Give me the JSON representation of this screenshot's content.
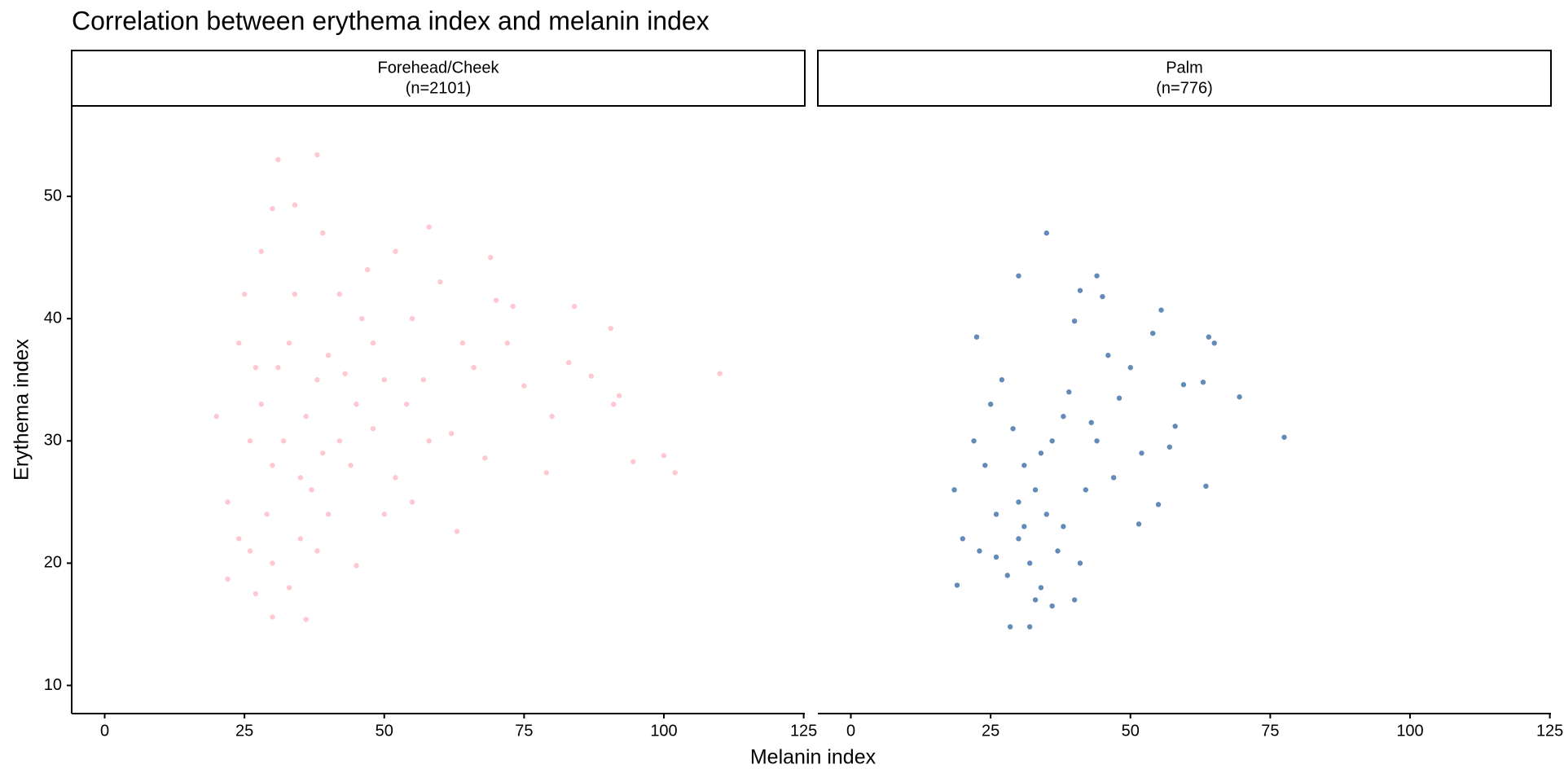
{
  "chart_data": {
    "type": "scatter",
    "title": "Correlation between erythema index and melanin index",
    "x_label": "Melanin index",
    "y_label": "Erythema index",
    "xlim": [
      -5.9,
      125.2
    ],
    "ylim": [
      7.7,
      57.4
    ],
    "xticks": [
      0,
      25,
      50,
      75,
      100,
      125
    ],
    "yticks": [
      10,
      20,
      30,
      40,
      50
    ],
    "facets": [
      {
        "strip": [
          "Forehead/Cheek",
          "(n=2101)"
        ],
        "color": "#ffb6c1",
        "x": [
          20,
          31,
          38,
          30,
          34,
          39,
          58,
          69,
          52,
          84,
          90.5,
          110,
          94.5,
          100,
          102,
          91,
          92,
          79,
          63,
          30,
          36,
          22,
          27,
          45,
          33,
          80,
          75,
          87,
          83,
          70,
          73,
          64,
          55,
          48,
          60,
          42,
          47,
          25,
          28,
          22,
          24,
          26,
          35,
          40,
          50,
          52,
          58,
          62,
          68,
          57,
          45,
          38,
          32,
          30,
          28,
          35,
          33,
          42,
          37,
          29,
          31,
          36,
          26,
          44,
          40,
          48,
          54,
          66,
          72,
          46,
          55,
          24,
          27,
          34,
          30,
          38,
          50,
          43,
          39
        ],
        "y": [
          32,
          53,
          53.4,
          49,
          49.3,
          47,
          47.5,
          45,
          45.5,
          41,
          39.2,
          35.5,
          28.3,
          28.8,
          27.4,
          33,
          33.7,
          27.4,
          22.6,
          15.6,
          15.4,
          18.7,
          17.5,
          19.8,
          18,
          32,
          34.5,
          35.3,
          36.4,
          41.5,
          41,
          38,
          40,
          38,
          43,
          42,
          44,
          42,
          45.5,
          25,
          22,
          21,
          22,
          24,
          24,
          27,
          30,
          30.6,
          28.6,
          35,
          33,
          35,
          30,
          28,
          33,
          27,
          38,
          30,
          26,
          24,
          36,
          32,
          30,
          28,
          37,
          31,
          33,
          36,
          38,
          40,
          25,
          38,
          36,
          42,
          20,
          21,
          35,
          35.5,
          29
        ]
      },
      {
        "strip": [
          "Palm",
          "(n=776)"
        ],
        "color": "#2e64a0",
        "x": [
          28.5,
          32,
          35,
          30,
          44,
          45,
          41,
          55.5,
          65,
          64,
          69.5,
          77.5,
          63.5,
          55,
          51.5,
          19,
          18.5,
          22.5,
          58,
          57,
          59.5,
          63,
          54,
          48,
          50,
          46,
          40,
          38,
          36,
          33,
          30,
          28,
          26,
          24,
          22,
          25,
          32,
          34,
          36,
          40,
          41,
          38,
          35,
          31,
          29,
          27,
          23,
          20,
          44,
          47,
          42,
          37,
          33,
          30,
          34,
          39,
          43,
          52,
          26,
          31
        ],
        "y": [
          14.8,
          14.8,
          47,
          43.5,
          43.5,
          41.8,
          42.3,
          40.7,
          38,
          38.5,
          33.6,
          30.3,
          26.3,
          24.8,
          23.2,
          18.2,
          26,
          38.5,
          31.2,
          29.5,
          34.6,
          34.8,
          38.8,
          33.5,
          36,
          37,
          39.8,
          32,
          30,
          26,
          22,
          19,
          24,
          28,
          30,
          33,
          20,
          18,
          16.5,
          17,
          20,
          23,
          24,
          28,
          31,
          35,
          21,
          22,
          30,
          27,
          26,
          21,
          17,
          25,
          29,
          34,
          31.5,
          29,
          20.5,
          23
        ]
      }
    ]
  }
}
